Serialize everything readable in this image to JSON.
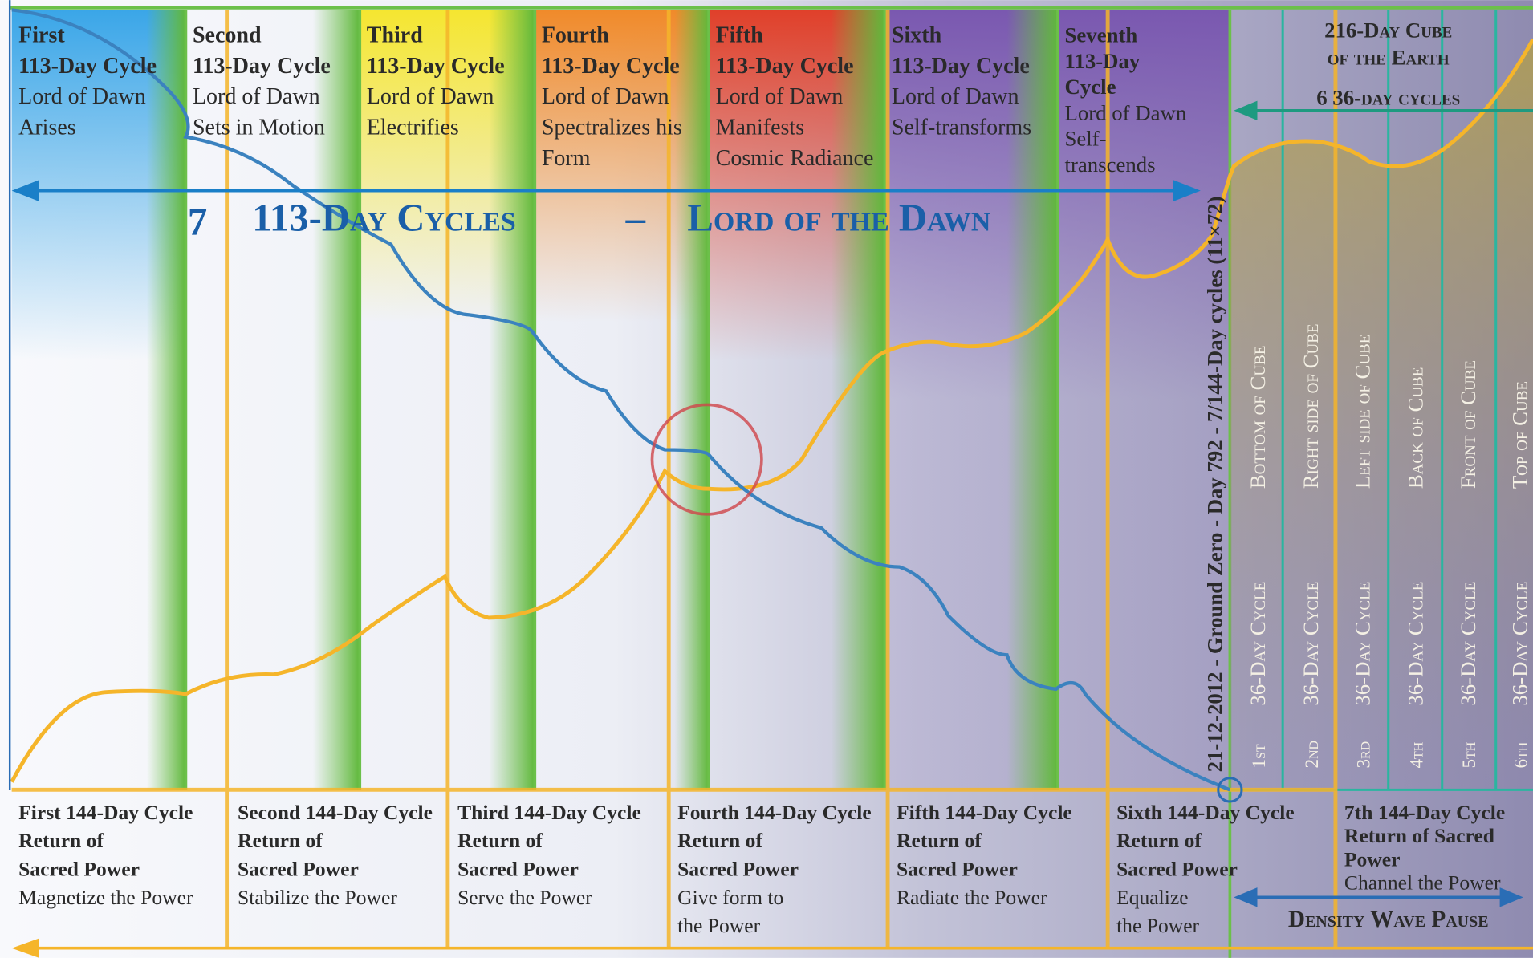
{
  "top_cycles": [
    {
      "heading": [
        "First",
        "113-Day Cycle"
      ],
      "lines": [
        "Lord of Dawn",
        "Arises"
      ]
    },
    {
      "heading": [
        "Second",
        "113-Day Cycle"
      ],
      "lines": [
        "Lord of Dawn",
        "Sets in Motion"
      ]
    },
    {
      "heading": [
        "Third",
        "113-Day Cycle"
      ],
      "lines": [
        "Lord of Dawn",
        "Electrifies"
      ]
    },
    {
      "heading": [
        "Fourth",
        "113-Day Cycle"
      ],
      "lines": [
        "Lord of Dawn",
        "Spectralizes his",
        "Form"
      ]
    },
    {
      "heading": [
        "Fifth",
        "113-Day Cycle"
      ],
      "lines": [
        "Lord of Dawn",
        "Manifests",
        "Cosmic Radiance"
      ]
    },
    {
      "heading": [
        "Sixth",
        "113-Day Cycle"
      ],
      "lines": [
        "Lord of Dawn",
        "Self-transforms"
      ]
    },
    {
      "heading": [
        "Seventh",
        "113-Day",
        "Cycle"
      ],
      "lines": [
        "Lord of Dawn",
        "Self-",
        "transcends"
      ]
    }
  ],
  "banner": {
    "number": "7",
    "text": "113-Day Cycles",
    "dash": "–",
    "subtitle": "Lord of the Dawn"
  },
  "ground_zero": "21-12-2012 - Ground Zero - Day 792 - 7/144-Day cycles (11×72)",
  "cube": {
    "title": [
      "216-Day Cube",
      "of the Earth"
    ],
    "subtitle": "6 36-day cycles",
    "columns": [
      {
        "ordinal": "1st",
        "cycle": "36-Day Cycle",
        "side": "Bottom of Cube"
      },
      {
        "ordinal": "2nd",
        "cycle": "36-Day Cycle",
        "side": "Right side of Cube"
      },
      {
        "ordinal": "3rd",
        "cycle": "36-Day Cycle",
        "side": "Left side of Cube"
      },
      {
        "ordinal": "4th",
        "cycle": "36-Day Cycle",
        "side": "Back of Cube"
      },
      {
        "ordinal": "5th",
        "cycle": "36-Day Cycle",
        "side": "Front of Cube"
      },
      {
        "ordinal": "6th",
        "cycle": "36-Day Cycle",
        "side": "Top of Cube"
      }
    ]
  },
  "bottom_cycles": [
    {
      "heading": [
        "First 144-Day Cycle",
        "Return of",
        "Sacred Power"
      ],
      "lines": [
        "Magnetize the Power"
      ]
    },
    {
      "heading": [
        "Second 144-Day Cycle",
        "Return of",
        "Sacred Power"
      ],
      "lines": [
        "Stabilize the Power"
      ]
    },
    {
      "heading": [
        "Third 144-Day Cycle",
        "Return of",
        "Sacred Power"
      ],
      "lines": [
        "Serve the Power"
      ]
    },
    {
      "heading": [
        "Fourth 144-Day Cycle",
        "Return of",
        "Sacred Power"
      ],
      "lines": [
        "Give form to",
        "the Power"
      ]
    },
    {
      "heading": [
        "Fifth 144-Day Cycle",
        "Return of",
        "Sacred Power"
      ],
      "lines": [
        "Radiate the Power"
      ]
    },
    {
      "heading": [
        "Sixth 144-Day Cycle",
        "Return of",
        "Sacred Power"
      ],
      "lines": [
        "Equalize",
        "the Power"
      ]
    },
    {
      "heading": [
        "7th 144-Day Cycle",
        "Return of Sacred",
        "Power"
      ],
      "lines": [
        "Channel the Power"
      ]
    }
  ],
  "pause": "Density Wave Pause"
}
